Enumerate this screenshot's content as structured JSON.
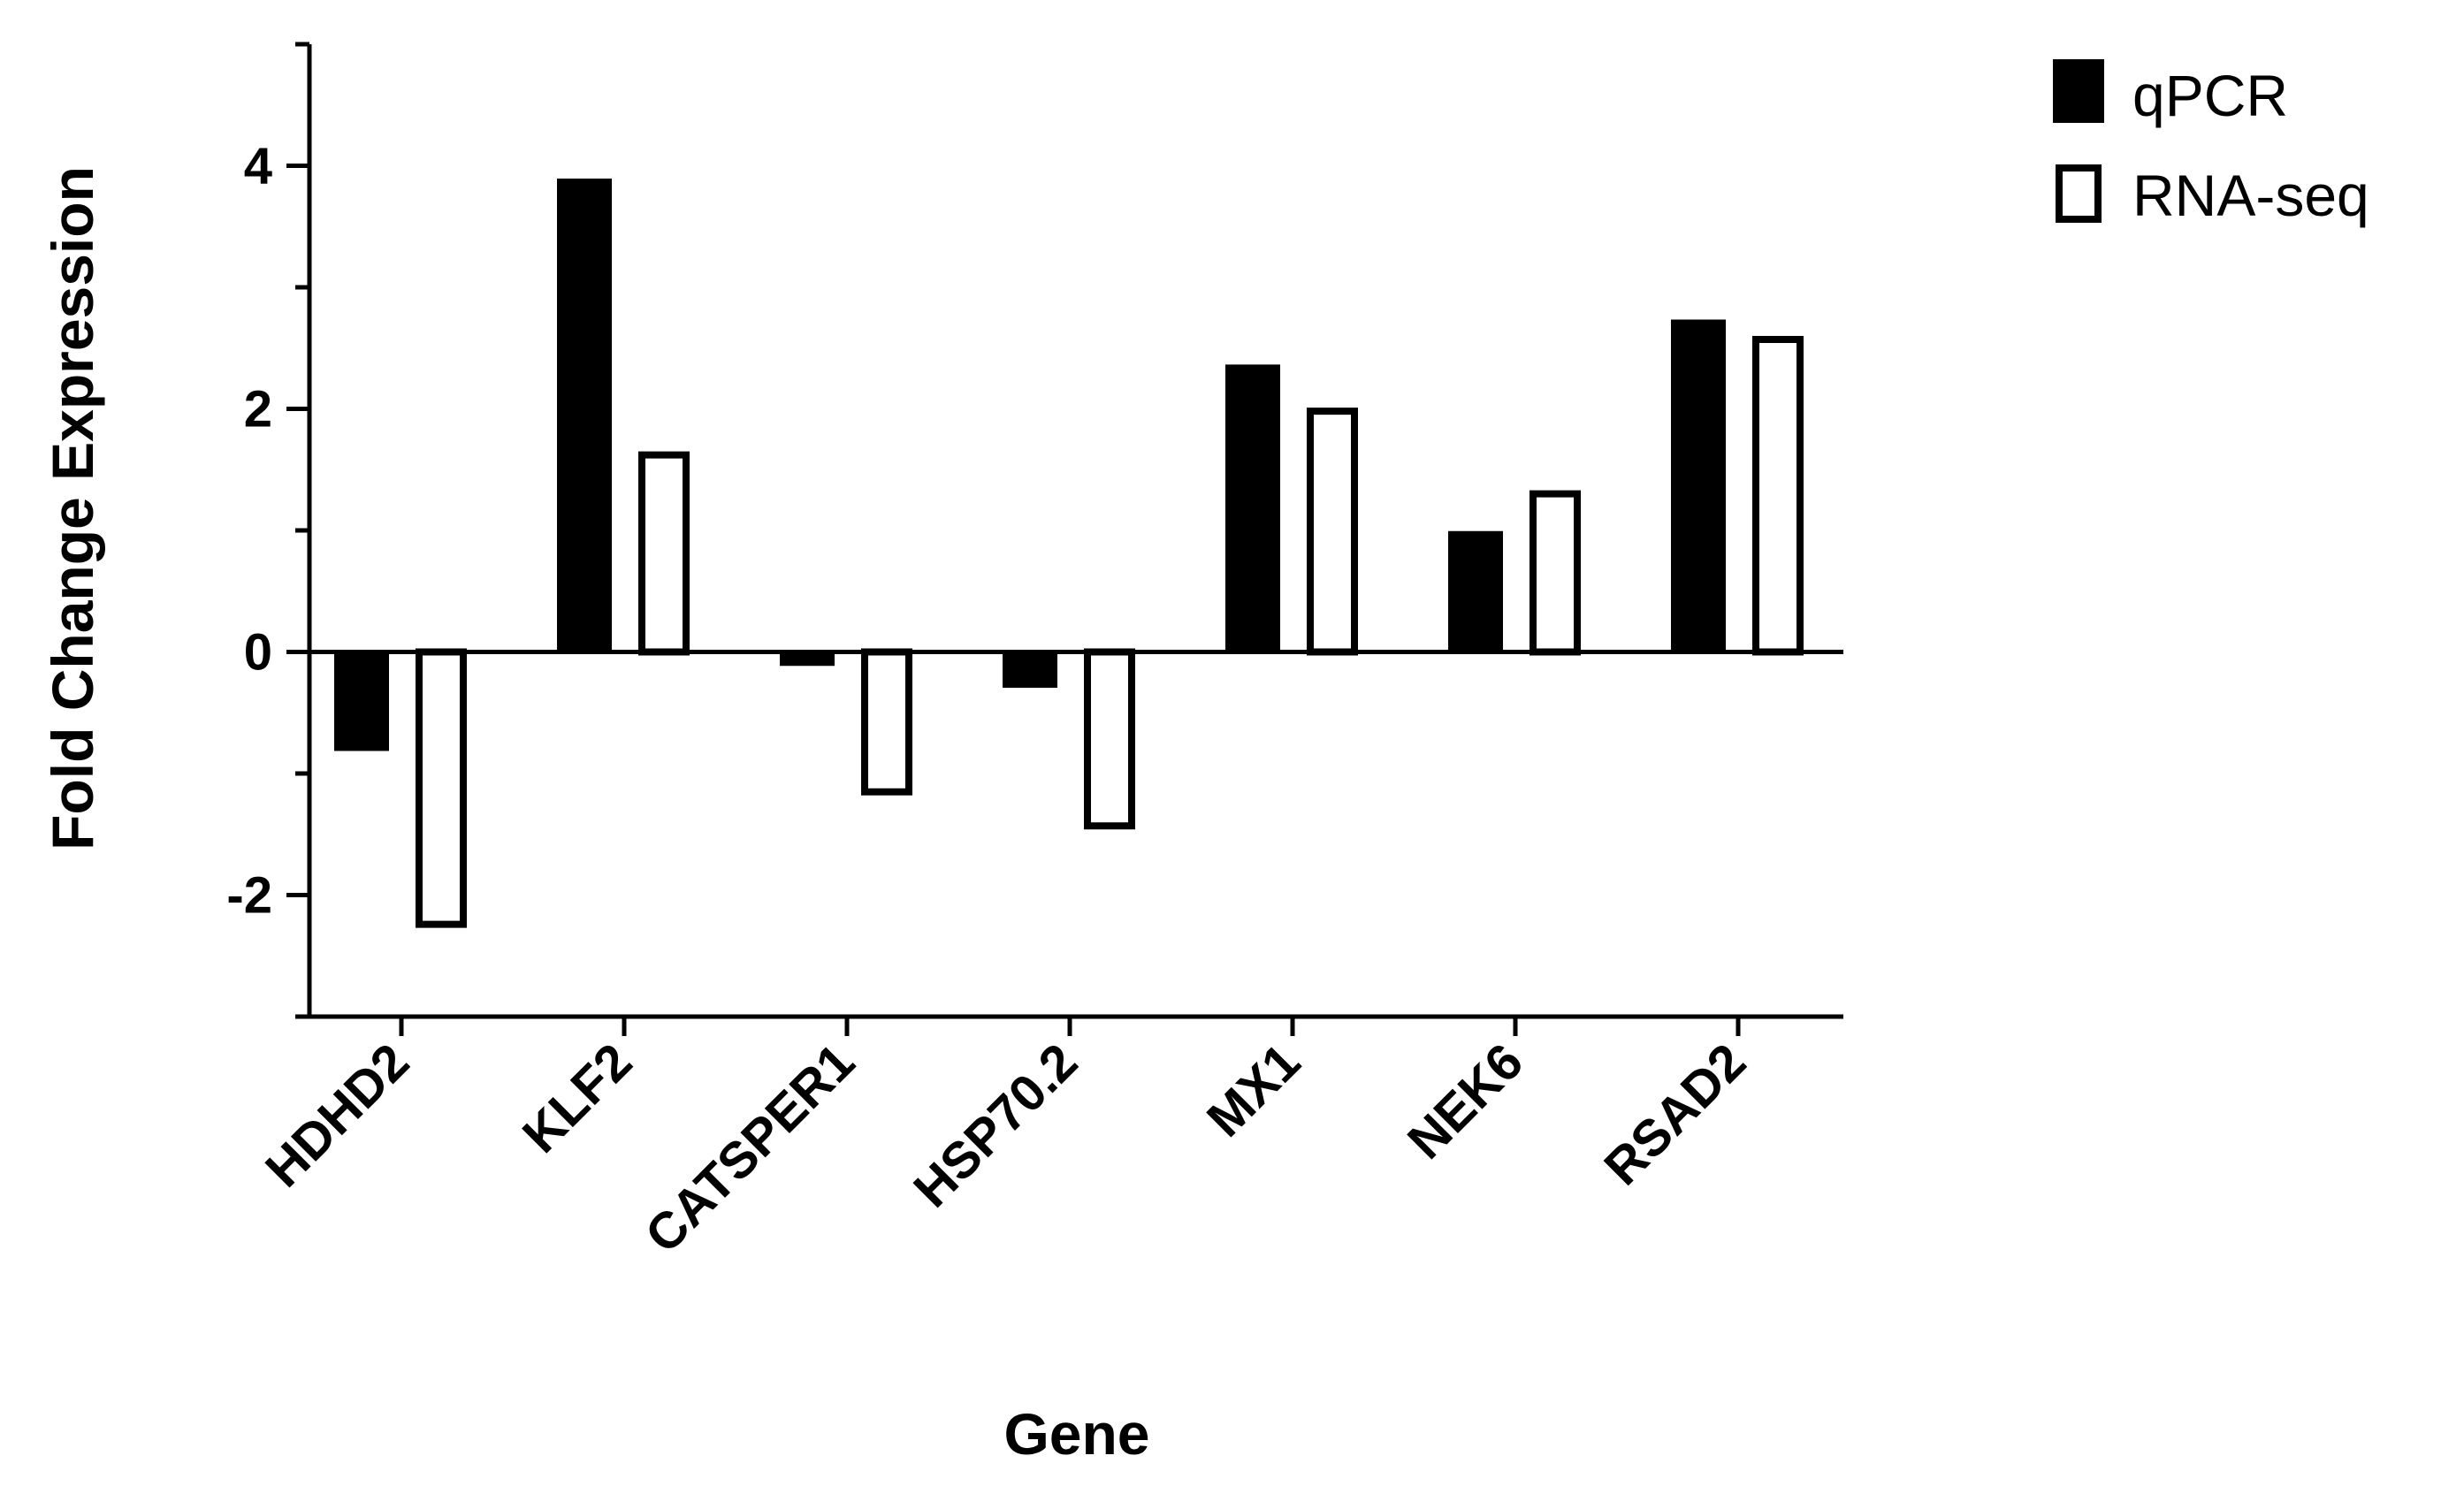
{
  "chart_data": {
    "type": "bar",
    "title": "",
    "xlabel": "Gene",
    "ylabel": "Fold Change Expression",
    "categories": [
      "HDHD2",
      "KLF2",
      "CATSPER1",
      "HSP70.2",
      "MX1",
      "NEK6",
      "RSAD2"
    ],
    "series": [
      {
        "name": "qPCR",
        "values": [
          -0.8,
          3.88,
          -0.1,
          -0.28,
          2.35,
          0.98,
          2.72
        ],
        "color": "#000000",
        "fill": "solid"
      },
      {
        "name": "RNA-seq",
        "values": [
          -2.27,
          1.65,
          -1.18,
          -1.46,
          2.01,
          1.33,
          2.6
        ],
        "color": "#000000",
        "fill": "hollow"
      }
    ],
    "ylim": [
      -3,
      5
    ],
    "yticks": [
      -2,
      0,
      2,
      4
    ],
    "grid": false,
    "legend_position": "top-right"
  }
}
